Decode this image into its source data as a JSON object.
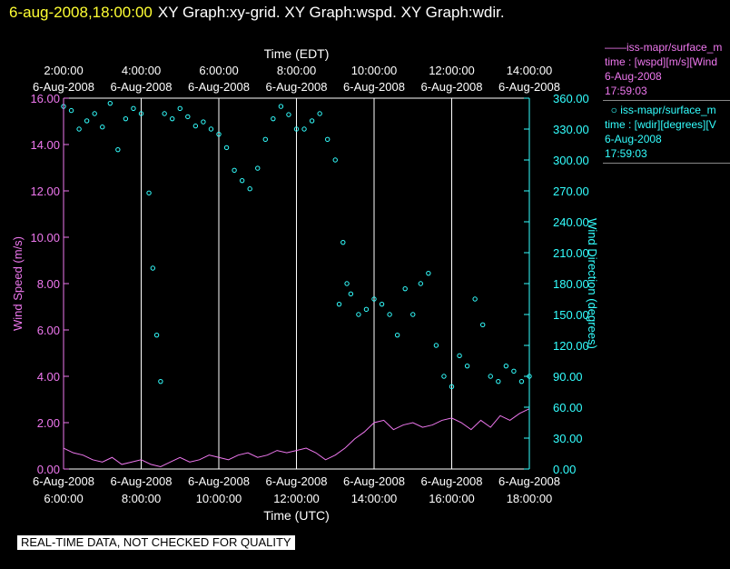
{
  "header": {
    "timestamp": "6-aug-2008,18:00:00",
    "graphs": "XY Graph:xy-grid.  XY Graph:wspd.  XY Graph:wdir."
  },
  "legend": {
    "speed": {
      "series": "iss-mapr/surface_m",
      "var": "time : [wspd][m/s][Wind",
      "date": "6-Aug-2008",
      "time": "17:59:03"
    },
    "dir": {
      "series": "iss-mapr/surface_m",
      "var": "time : [wdir][degrees][V",
      "date": "6-Aug-2008",
      "time": "17:59:03"
    }
  },
  "footer": {
    "note": "REAL-TIME DATA, NOT CHECKED FOR QUALITY"
  },
  "colors": {
    "speed": "#ee77ee",
    "direction": "#33ffff",
    "timestamp": "#ffff33",
    "grid": "#ffffff"
  },
  "chart_data": {
    "type": "line",
    "top_axis_label": "Time (EDT)",
    "bottom_axis_label": "Time (UTC)",
    "ylabel_left": "Wind Speed (m/s)",
    "ylabel_right": "Wind Direction (degrees)",
    "x_range_utc_hours": [
      6.0,
      18.0
    ],
    "ylim_left": [
      0,
      16
    ],
    "ylim_right": [
      0,
      360
    ],
    "left_ticks": [
      "0.00",
      "2.00",
      "4.00",
      "6.00",
      "8.00",
      "10.00",
      "12.00",
      "14.00",
      "16.00"
    ],
    "right_ticks": [
      "0.00",
      "30.00",
      "60.00",
      "90.00",
      "120.00",
      "150.00",
      "180.00",
      "210.00",
      "240.00",
      "270.00",
      "300.00",
      "330.00",
      "360.00"
    ],
    "grid_hours": [
      8,
      10,
      12,
      14,
      16
    ],
    "top_ticks": [
      {
        "hour": 6,
        "time": "2:00:00",
        "date": "6-Aug-2008"
      },
      {
        "hour": 8,
        "time": "4:00:00",
        "date": "6-Aug-2008"
      },
      {
        "hour": 10,
        "time": "6:00:00",
        "date": "6-Aug-2008"
      },
      {
        "hour": 12,
        "time": "8:00:00",
        "date": "6-Aug-2008"
      },
      {
        "hour": 14,
        "time": "10:00:00",
        "date": "6-Aug-2008"
      },
      {
        "hour": 16,
        "time": "12:00:00",
        "date": "6-Aug-2008"
      },
      {
        "hour": 18,
        "time": "14:00:00",
        "date": "6-Aug-2008"
      }
    ],
    "bottom_ticks": [
      {
        "hour": 6,
        "date": "6-Aug-2008",
        "time": "6:00:00"
      },
      {
        "hour": 8,
        "date": "6-Aug-2008",
        "time": "8:00:00"
      },
      {
        "hour": 10,
        "date": "6-Aug-2008",
        "time": "10:00:00"
      },
      {
        "hour": 12,
        "date": "6-Aug-2008",
        "time": "12:00:00"
      },
      {
        "hour": 14,
        "date": "6-Aug-2008",
        "time": "14:00:00"
      },
      {
        "hour": 16,
        "date": "6-Aug-2008",
        "time": "16:00:00"
      },
      {
        "hour": 18,
        "date": "6-Aug-2008",
        "time": "18:00:00"
      }
    ],
    "series": [
      {
        "name": "Wind Speed",
        "axis": "left",
        "style": "line",
        "x": [
          6.0,
          6.25,
          6.5,
          6.75,
          7.0,
          7.25,
          7.5,
          7.75,
          8.0,
          8.25,
          8.5,
          8.75,
          9.0,
          9.25,
          9.5,
          9.75,
          10.0,
          10.25,
          10.5,
          10.75,
          11.0,
          11.25,
          11.5,
          11.75,
          12.0,
          12.25,
          12.5,
          12.75,
          13.0,
          13.25,
          13.5,
          13.75,
          14.0,
          14.25,
          14.5,
          14.75,
          15.0,
          15.25,
          15.5,
          15.75,
          16.0,
          16.25,
          16.5,
          16.75,
          17.0,
          17.25,
          17.5,
          17.75,
          18.0
        ],
        "values": [
          0.9,
          0.7,
          0.6,
          0.4,
          0.3,
          0.5,
          0.2,
          0.3,
          0.4,
          0.2,
          0.1,
          0.3,
          0.5,
          0.3,
          0.4,
          0.6,
          0.5,
          0.4,
          0.6,
          0.7,
          0.5,
          0.6,
          0.8,
          0.7,
          0.8,
          0.9,
          0.7,
          0.4,
          0.6,
          0.9,
          1.3,
          1.6,
          2.0,
          2.1,
          1.7,
          1.9,
          2.0,
          1.8,
          1.9,
          2.1,
          2.2,
          2.0,
          1.7,
          2.1,
          1.8,
          2.3,
          2.1,
          2.4,
          2.6
        ]
      },
      {
        "name": "Wind Direction",
        "axis": "right",
        "style": "scatter",
        "x": [
          6.0,
          6.2,
          6.4,
          6.6,
          6.8,
          7.0,
          7.2,
          7.4,
          7.6,
          7.8,
          8.0,
          8.2,
          8.3,
          8.4,
          8.5,
          8.6,
          8.8,
          9.0,
          9.2,
          9.4,
          9.6,
          9.8,
          10.0,
          10.2,
          10.4,
          10.6,
          10.8,
          11.0,
          11.2,
          11.4,
          11.6,
          11.8,
          12.0,
          12.2,
          12.4,
          12.6,
          12.8,
          13.0,
          13.1,
          13.2,
          13.3,
          13.4,
          13.6,
          13.8,
          14.0,
          14.2,
          14.4,
          14.6,
          14.8,
          15.0,
          15.2,
          15.4,
          15.6,
          15.8,
          16.0,
          16.2,
          16.4,
          16.6,
          16.8,
          17.0,
          17.2,
          17.4,
          17.6,
          17.8,
          18.0
        ],
        "values": [
          352,
          348,
          330,
          338,
          345,
          332,
          355,
          310,
          340,
          350,
          345,
          268,
          195,
          130,
          85,
          345,
          340,
          350,
          342,
          333,
          337,
          330,
          325,
          312,
          290,
          280,
          272,
          292,
          320,
          340,
          352,
          344,
          330,
          330,
          338,
          345,
          320,
          300,
          160,
          220,
          180,
          170,
          150,
          155,
          165,
          160,
          150,
          130,
          175,
          150,
          180,
          190,
          120,
          90,
          80,
          110,
          100,
          165,
          140,
          90,
          85,
          100,
          95,
          85,
          90
        ]
      }
    ]
  }
}
